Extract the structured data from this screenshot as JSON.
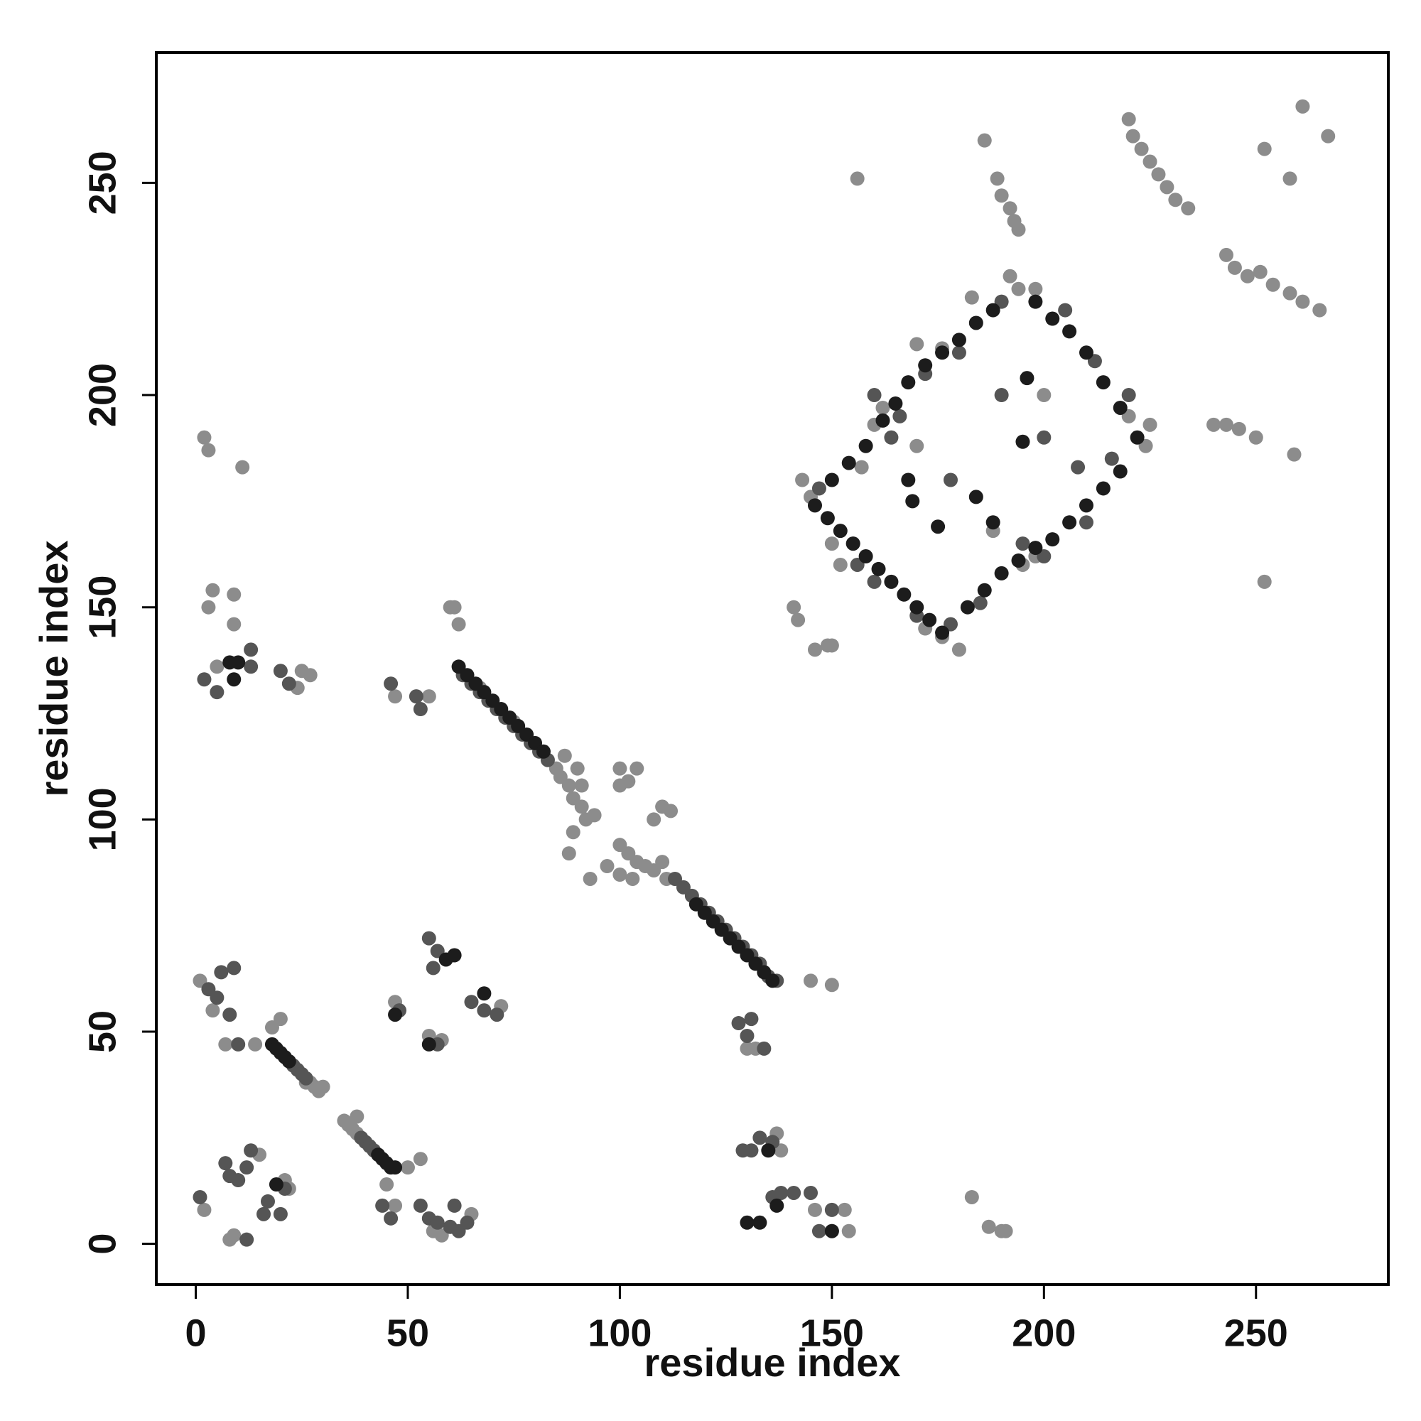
{
  "chart_data": {
    "type": "scatter",
    "xlabel": "residue index",
    "ylabel": "residue index",
    "xlim": [
      -9.3,
      281.2
    ],
    "ylim": [
      -9.6,
      280.7
    ],
    "xticks": [
      0,
      50,
      100,
      150,
      200,
      250
    ],
    "yticks": [
      0,
      50,
      100,
      150,
      200,
      250
    ],
    "series": [
      {
        "color": "#8c8c8c",
        "x": [
          27,
          28,
          29,
          30,
          26,
          35,
          36,
          37,
          38,
          38,
          61,
          62,
          85,
          86,
          88,
          89,
          90,
          91,
          92,
          89,
          88,
          93,
          94,
          97,
          100,
          100,
          102,
          104,
          106,
          108,
          110,
          111,
          100,
          102,
          104,
          100,
          108,
          110,
          112,
          103,
          87,
          91,
          60,
          67,
          75,
          143,
          145,
          150,
          152,
          155,
          157,
          160,
          162,
          170,
          176,
          183,
          192,
          194,
          198,
          188,
          195,
          198,
          180,
          176,
          172,
          220,
          225,
          224,
          200,
          170,
          2,
          3,
          11,
          3,
          4,
          9,
          9,
          5,
          25,
          27,
          24,
          47,
          55,
          1,
          4,
          7,
          14,
          20,
          18,
          55,
          58,
          47,
          72,
          9,
          2,
          8,
          15,
          21,
          22,
          45,
          50,
          53,
          47,
          56,
          58,
          65,
          130,
          132,
          137,
          138,
          146,
          150,
          153,
          154,
          145,
          150,
          183,
          187,
          190,
          191,
          142,
          141,
          146,
          149,
          150,
          220,
          221,
          223,
          225,
          227,
          229,
          231,
          234,
          243,
          245,
          248,
          251,
          254,
          258,
          261,
          265,
          240,
          243,
          246,
          250,
          189,
          190,
          192,
          193,
          194,
          186,
          156,
          252,
          258,
          261,
          267,
          259,
          252
        ],
        "y": [
          38,
          37,
          36,
          37,
          38,
          29,
          28,
          27,
          26,
          30,
          150,
          146,
          112,
          110,
          108,
          105,
          112,
          103,
          100,
          97,
          92,
          86,
          101,
          89,
          94,
          87,
          92,
          90,
          89,
          88,
          90,
          86,
          112,
          109,
          112,
          108,
          100,
          103,
          102,
          86,
          115,
          108,
          150,
          131,
          123,
          180,
          176,
          165,
          160,
          165,
          183,
          193,
          197,
          212,
          211,
          223,
          228,
          225,
          225,
          168,
          160,
          162,
          140,
          143,
          145,
          195,
          193,
          188,
          200,
          188,
          190,
          187,
          183,
          150,
          154,
          153,
          146,
          136,
          135,
          134,
          131,
          129,
          129,
          62,
          55,
          47,
          47,
          53,
          51,
          49,
          48,
          57,
          56,
          2,
          8,
          1,
          21,
          15,
          13,
          14,
          18,
          20,
          9,
          3,
          2,
          7,
          46,
          46,
          26,
          22,
          8,
          3,
          8,
          3,
          62,
          61,
          11,
          4,
          3,
          3,
          147,
          150,
          140,
          141,
          141,
          265,
          261,
          258,
          255,
          252,
          249,
          246,
          244,
          233,
          230,
          228,
          229,
          226,
          224,
          222,
          220,
          193,
          193,
          192,
          190,
          251,
          247,
          244,
          241,
          239,
          260,
          251,
          258,
          251,
          268,
          261,
          186,
          156
        ]
      },
      {
        "color": "#555555",
        "x": [
          23,
          24,
          25,
          26,
          39,
          40,
          41,
          42,
          63,
          65,
          67,
          69,
          71,
          73,
          75,
          77,
          79,
          81,
          83,
          113,
          115,
          117,
          119,
          121,
          123,
          125,
          127,
          129,
          131,
          133,
          135,
          137,
          3,
          5,
          8,
          6,
          9,
          10,
          2,
          5,
          13,
          13,
          20,
          22,
          46,
          52,
          53,
          55,
          57,
          56,
          48,
          57,
          65,
          68,
          71,
          7,
          8,
          12,
          13,
          10,
          17,
          20,
          21,
          16,
          12,
          1,
          44,
          46,
          53,
          55,
          57,
          60,
          62,
          64,
          61,
          128,
          131,
          130,
          134,
          131,
          133,
          136,
          129,
          136,
          138,
          141,
          145,
          147,
          150,
          147,
          156,
          160,
          170,
          178,
          185,
          200,
          210,
          216,
          220,
          212,
          205,
          190,
          180,
          164,
          160,
          166,
          178,
          190,
          200,
          208,
          195,
          172
        ],
        "y": [
          42,
          41,
          40,
          39,
          25,
          24,
          23,
          22,
          134,
          132,
          130,
          128,
          126,
          124,
          122,
          120,
          118,
          116,
          114,
          86,
          84,
          82,
          80,
          78,
          76,
          74,
          72,
          70,
          68,
          66,
          63,
          62,
          60,
          58,
          54,
          64,
          65,
          47,
          133,
          130,
          140,
          136,
          135,
          132,
          132,
          129,
          126,
          72,
          69,
          65,
          55,
          47,
          57,
          55,
          54,
          19,
          16,
          18,
          22,
          15,
          10,
          7,
          13,
          7,
          1,
          11,
          9,
          6,
          9,
          6,
          5,
          4,
          3,
          5,
          9,
          52,
          53,
          49,
          46,
          22,
          25,
          24,
          22,
          11,
          12,
          12,
          12,
          3,
          8,
          178,
          160,
          156,
          148,
          146,
          151,
          162,
          170,
          185,
          200,
          208,
          220,
          222,
          210,
          190,
          200,
          195,
          180,
          200,
          190,
          183,
          165,
          205
        ]
      },
      {
        "color": "#1c1c1c",
        "x": [
          18,
          19,
          20,
          21,
          22,
          43,
          44,
          45,
          46,
          47,
          62,
          64,
          66,
          68,
          70,
          72,
          74,
          76,
          78,
          80,
          82,
          118,
          120,
          122,
          124,
          126,
          128,
          130,
          132,
          134,
          136,
          8,
          10,
          9,
          55,
          59,
          61,
          68,
          47,
          19,
          130,
          133,
          137,
          135,
          150,
          146,
          149,
          152,
          155,
          158,
          161,
          164,
          167,
          170,
          173,
          176,
          182,
          186,
          190,
          194,
          198,
          202,
          206,
          210,
          214,
          218,
          222,
          218,
          214,
          210,
          206,
          202,
          198,
          150,
          154,
          158,
          162,
          165,
          168,
          172,
          176,
          180,
          184,
          188,
          169,
          175,
          196,
          195,
          188,
          184,
          168
        ],
        "y": [
          47,
          46,
          45,
          44,
          43,
          21,
          20,
          19,
          18,
          18,
          136,
          134,
          132,
          130,
          128,
          126,
          124,
          122,
          120,
          118,
          116,
          80,
          78,
          76,
          74,
          72,
          70,
          68,
          66,
          64,
          62,
          137,
          137,
          133,
          47,
          67,
          68,
          59,
          54,
          14,
          5,
          5,
          9,
          22,
          3,
          174,
          171,
          168,
          165,
          162,
          159,
          156,
          153,
          150,
          147,
          144,
          150,
          154,
          158,
          161,
          164,
          166,
          170,
          174,
          178,
          182,
          190,
          197,
          203,
          210,
          215,
          218,
          222,
          180,
          184,
          188,
          194,
          198,
          203,
          207,
          210,
          213,
          217,
          220,
          175,
          169,
          204,
          189,
          170,
          176,
          180
        ]
      }
    ]
  }
}
